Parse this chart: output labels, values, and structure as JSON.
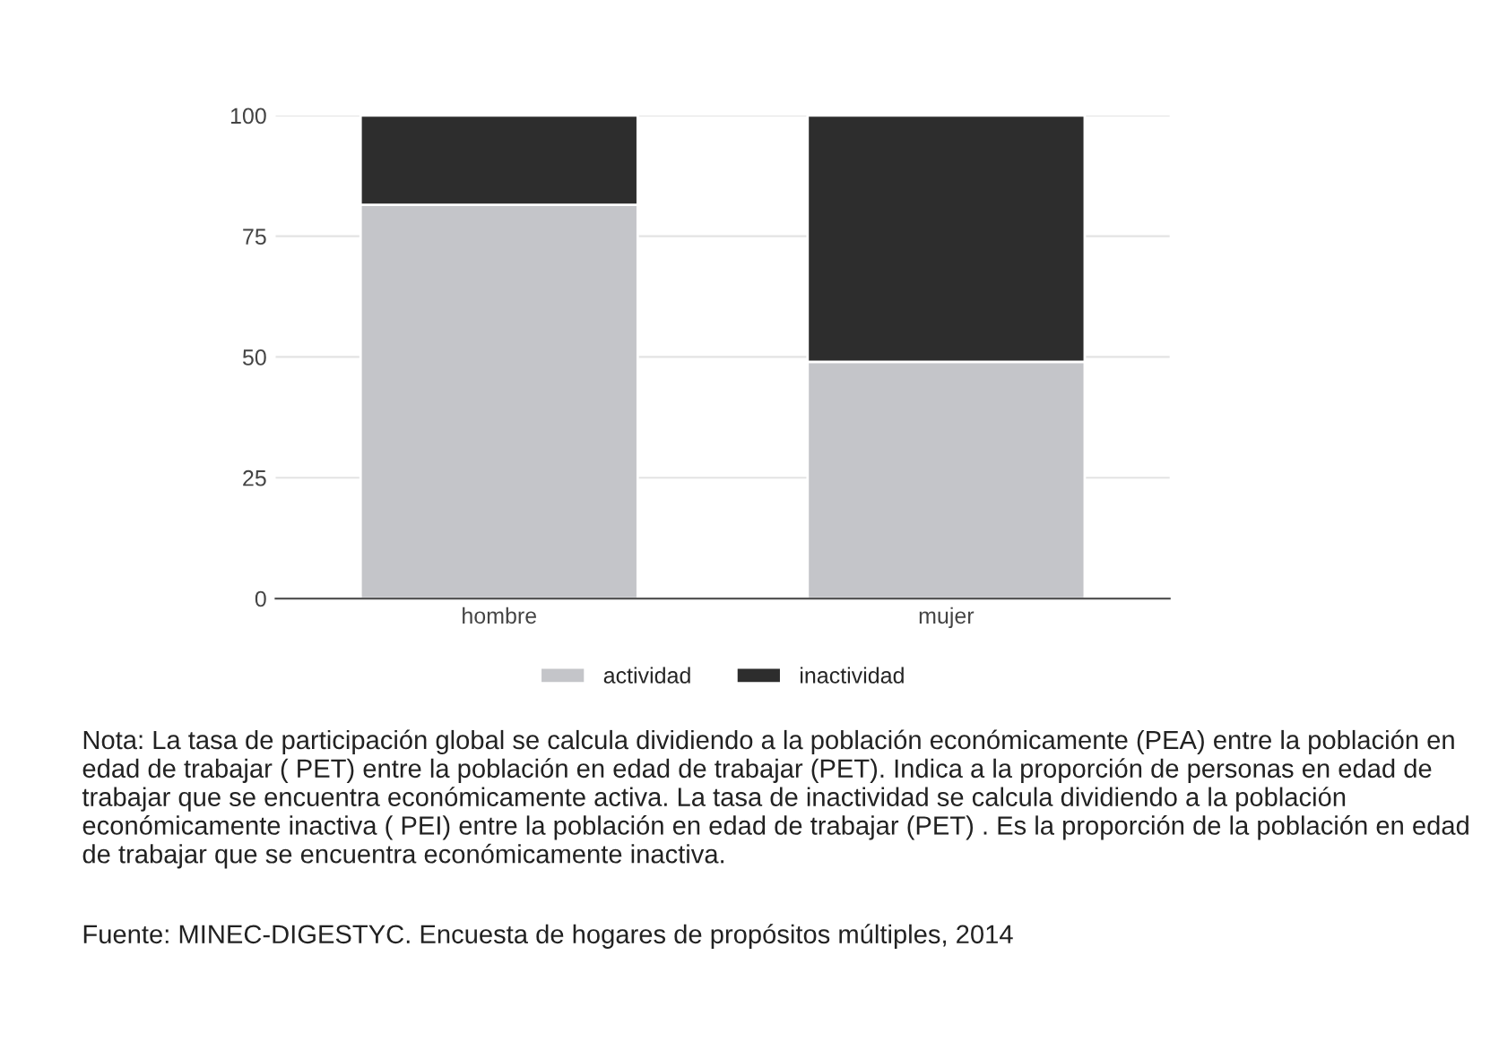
{
  "chart_data": {
    "type": "bar",
    "stacked": true,
    "categories": [
      "hombre",
      "mujer"
    ],
    "series": [
      {
        "name": "actividad",
        "color": "#c4c5c9",
        "values": [
          81.5,
          49
        ]
      },
      {
        "name": "inactividad",
        "color": "#2d2d2d",
        "values": [
          18.5,
          51
        ]
      }
    ],
    "ylim": [
      0,
      100
    ],
    "yticks": [
      0,
      25,
      50,
      75,
      100
    ],
    "grid": "y",
    "legend": "bottom",
    "annotations": [
      "Nota: La tasa de participación global se calcula dividiendo a la población económicamente (PEA) entre la población en edad de trabajar ( PET) entre la población en edad de trabajar (PET). Indica a la proporción de personas en edad de trabajar que se encuentra económicamente activa. La tasa de inactividad se calcula dividiendo a la población económicamente inactiva ( PEI) entre la población en edad de trabajar (PET) . Es la proporción de la población en edad de trabajar que se encuentra económicamente inactiva.",
      "Fuente: MINEC-DIGESTYC. Encuesta de hogares de propósitos múltiples, 2014"
    ]
  }
}
